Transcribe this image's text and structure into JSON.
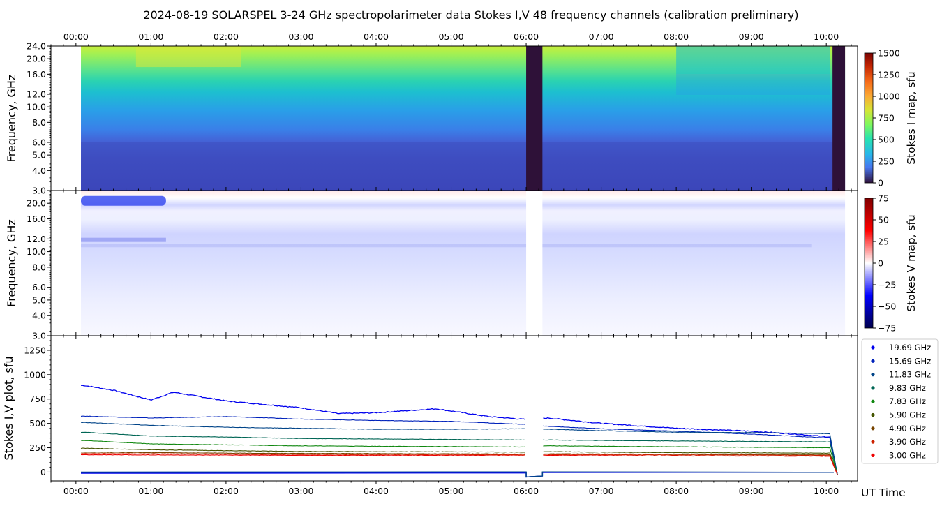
{
  "title": "2024-08-19  SOLARSPEL  3-24 GHz spectropolarimeter data   Stokes I,V   48 frequency channels   (calibration preliminary)",
  "colors": {
    "background": "#ffffff",
    "gap": "#2e1138",
    "axis": "#000000"
  },
  "chart_data": [
    {
      "type": "heatmap",
      "panel": "stokes-i-map",
      "ylabel": "Frequency, GHz",
      "x_ticks": [
        "00:00",
        "01:00",
        "02:00",
        "03:00",
        "04:00",
        "05:00",
        "06:00",
        "07:00",
        "08:00",
        "09:00",
        "10:00"
      ],
      "x_ticks_position": "top",
      "xlim": [
        "-00:20",
        "10:25"
      ],
      "data_start": "00:04",
      "data_end": "10:15",
      "y_ticks": [
        "24.0",
        "20.0",
        "16.0",
        "12.0",
        "10.0",
        "8.0",
        "6.0",
        "5.0",
        "4.0",
        "3.0"
      ],
      "ylim": [
        3.0,
        24.0
      ],
      "yscale": "log",
      "colorbar": {
        "label": "Stokes I map, sfu",
        "ticks": [
          "1500",
          "1250",
          "1000",
          "750",
          "500",
          "250",
          "0"
        ],
        "range": [
          0,
          1500
        ],
        "colormap": "turbo"
      },
      "gaps": [
        [
          "06:00",
          "06:13"
        ],
        [
          "10:05",
          "10:15"
        ]
      ]
    },
    {
      "type": "heatmap",
      "panel": "stokes-v-map",
      "ylabel": "Frequency, GHz",
      "y_ticks": [
        "20.0",
        "16.0",
        "12.0",
        "10.0",
        "8.0",
        "6.0",
        "5.0",
        "4.0",
        "3.0"
      ],
      "ylim": [
        3.0,
        24.0
      ],
      "yscale": "log",
      "colorbar": {
        "label": "Stokes V map, sfu",
        "ticks": [
          "75",
          "50",
          "25",
          "0",
          "−25",
          "−50",
          "−75"
        ],
        "range": [
          -75,
          75
        ],
        "colormap": "seismic"
      },
      "gaps": [
        [
          "06:00",
          "06:13"
        ]
      ]
    },
    {
      "type": "line",
      "panel": "stokes-iv-plot",
      "ylabel": "Stokes I,V plot, sfu",
      "xlabel": "UT Time",
      "x_ticks": [
        "00:00",
        "01:00",
        "02:00",
        "03:00",
        "04:00",
        "05:00",
        "06:00",
        "07:00",
        "08:00",
        "09:00",
        "10:00"
      ],
      "y_ticks": [
        "0",
        "250",
        "500",
        "750",
        "1000",
        "1250"
      ],
      "ylim": [
        -90,
        1400
      ],
      "legend_position": "right",
      "series": [
        {
          "name": "19.69 GHz",
          "color": "#0000ee",
          "x_hours": [
            0.1,
            0.5,
            1.0,
            1.3,
            2.0,
            3.0,
            3.5,
            4.0,
            4.8,
            5.5,
            6.0,
            6.3,
            7.0,
            8.0,
            9.0,
            9.6,
            10.05
          ],
          "values": [
            890,
            840,
            740,
            820,
            730,
            660,
            600,
            610,
            650,
            570,
            540,
            555,
            500,
            450,
            420,
            390,
            360
          ]
        },
        {
          "name": "15.69 GHz",
          "color": "#0022bb",
          "x_hours": [
            0.1,
            1.0,
            2.0,
            3.0,
            4.0,
            5.0,
            6.0,
            6.3,
            7.0,
            8.0,
            9.0,
            10.05
          ],
          "values": [
            575,
            555,
            570,
            545,
            530,
            520,
            490,
            470,
            445,
            420,
            390,
            350
          ]
        },
        {
          "name": "11.83 GHz",
          "color": "#004488",
          "x_hours": [
            0.1,
            1.0,
            2.0,
            3.0,
            4.0,
            5.0,
            6.0,
            6.3,
            7.0,
            8.0,
            9.0,
            10.05
          ],
          "values": [
            510,
            480,
            460,
            450,
            440,
            440,
            445,
            440,
            425,
            410,
            405,
            395
          ]
        },
        {
          "name": "9.83 GHz",
          "color": "#006655",
          "x_hours": [
            0.1,
            1.0,
            2.0,
            3.0,
            4.0,
            5.0,
            6.0,
            6.3,
            7.0,
            8.0,
            9.0,
            10.05
          ],
          "values": [
            410,
            370,
            360,
            345,
            340,
            335,
            330,
            330,
            325,
            320,
            315,
            310
          ]
        },
        {
          "name": "7.83 GHz",
          "color": "#118811",
          "x_hours": [
            0.1,
            1.0,
            2.0,
            3.0,
            4.0,
            5.0,
            6.0,
            6.3,
            7.0,
            8.0,
            9.0,
            10.05
          ],
          "values": [
            325,
            290,
            280,
            270,
            265,
            262,
            258,
            270,
            265,
            260,
            255,
            250
          ]
        },
        {
          "name": "5.90 GHz",
          "color": "#445500",
          "x_hours": [
            0.1,
            1.0,
            2.0,
            3.0,
            4.0,
            5.0,
            6.0,
            6.3,
            7.0,
            8.0,
            9.0,
            10.05
          ],
          "values": [
            245,
            230,
            220,
            212,
            210,
            208,
            205,
            210,
            205,
            200,
            198,
            195
          ]
        },
        {
          "name": "4.90 GHz",
          "color": "#774400",
          "x_hours": [
            0.1,
            1.0,
            2.0,
            3.0,
            4.0,
            5.0,
            6.0,
            6.3,
            7.0,
            8.0,
            9.0,
            10.05
          ],
          "values": [
            205,
            200,
            195,
            192,
            190,
            188,
            186,
            188,
            186,
            184,
            182,
            180
          ]
        },
        {
          "name": "3.90 GHz",
          "color": "#cc2200",
          "x_hours": [
            0.1,
            1.0,
            2.0,
            3.0,
            4.0,
            5.0,
            6.0,
            6.3,
            7.0,
            8.0,
            9.0,
            10.05
          ],
          "values": [
            190,
            188,
            185,
            182,
            180,
            180,
            178,
            180,
            178,
            176,
            175,
            172
          ]
        },
        {
          "name": "3.00 GHz",
          "color": "#ee0000",
          "x_hours": [
            0.1,
            1.0,
            2.0,
            3.0,
            4.0,
            5.0,
            6.0,
            6.3,
            7.0,
            8.0,
            9.0,
            10.05
          ],
          "values": [
            178,
            176,
            175,
            172,
            170,
            170,
            168,
            170,
            168,
            166,
            165,
            163
          ]
        }
      ]
    }
  ]
}
